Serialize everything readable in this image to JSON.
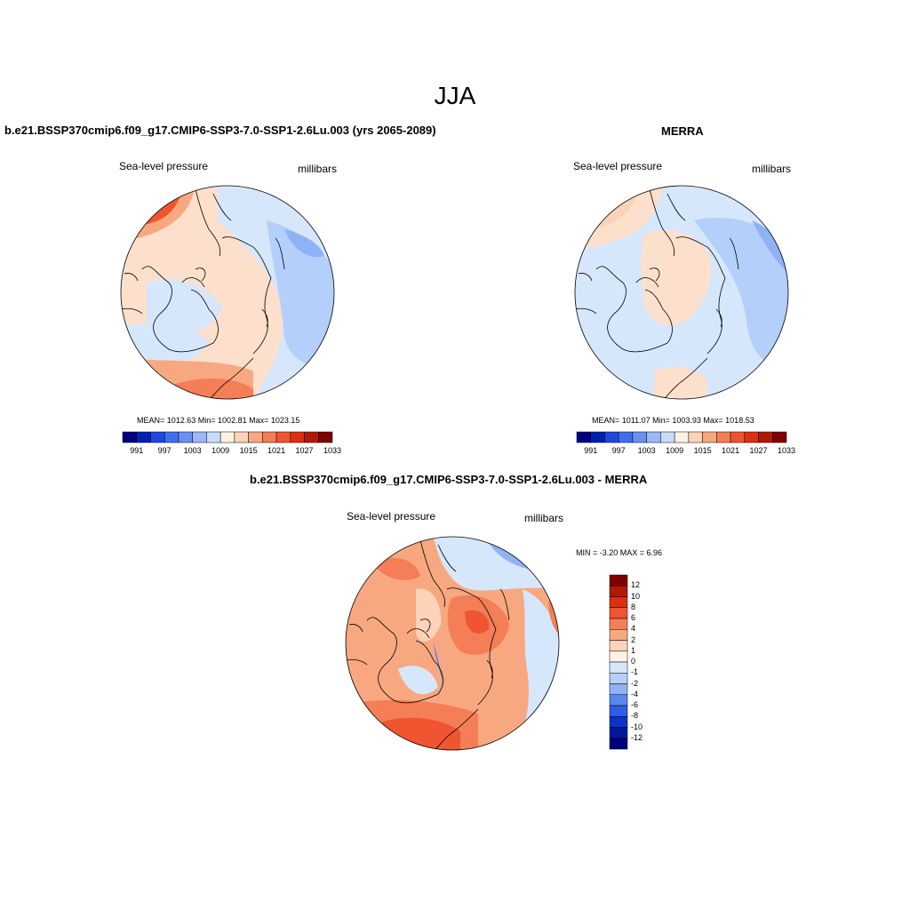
{
  "figure": {
    "title": "JJA",
    "colors": {
      "full_scale": [
        "#00007f",
        "#0020b0",
        "#1f46e0",
        "#3f6ff0",
        "#6a90f4",
        "#9ab8f8",
        "#c8dcfb",
        "#fff2e4",
        "#fcd2b8",
        "#f8a880",
        "#f47e55",
        "#ee5530",
        "#dc3010",
        "#b01a05",
        "#7e0000"
      ],
      "diff_scale": [
        "#7e0000",
        "#b01a05",
        "#dc3010",
        "#ee5530",
        "#f47e55",
        "#f8a880",
        "#fcd2b8",
        "#fff2e4",
        "#d6e7fc",
        "#b4cffa",
        "#8fb2f6",
        "#5a86f0",
        "#2e5de6",
        "#0c32c8",
        "#00189a",
        "#00007f"
      ]
    },
    "panels": [
      {
        "id": "model",
        "title": "b.e21.BSSP370cmip6.f09_g17.CMIP6-SSP3-7.0-SSP1-2.6Lu.003 (yrs 2065-2089)",
        "variable": "Sea-level pressure",
        "units": "millibars",
        "stats": "MEAN= 1012.63  Min= 1002.81  Max= 1023.15",
        "colorbar_ticks": [
          "991",
          "997",
          "1003",
          "1009",
          "1015",
          "1021",
          "1027",
          "1033"
        ]
      },
      {
        "id": "obs",
        "title": "MERRA",
        "variable": "Sea-level pressure",
        "units": "millibars",
        "stats": "MEAN= 1011.07  Min= 1003.93  Max= 1018.53",
        "colorbar_ticks": [
          "991",
          "997",
          "1003",
          "1009",
          "1015",
          "1021",
          "1027",
          "1033"
        ]
      },
      {
        "id": "diff",
        "title": "b.e21.BSSP370cmip6.f09_g17.CMIP6-SSP3-7.0-SSP1-2.6Lu.003 - MERRA",
        "variable": "Sea-level pressure",
        "units": "millibars",
        "stats": "MIN =  -3.20 MAX =   6.96",
        "colorbar_ticks": [
          "12",
          "10",
          "8",
          "6",
          "4",
          "2",
          "1",
          "0",
          "-1",
          "-2",
          "-4",
          "-6",
          "-8",
          "-10",
          "-12"
        ]
      }
    ]
  }
}
